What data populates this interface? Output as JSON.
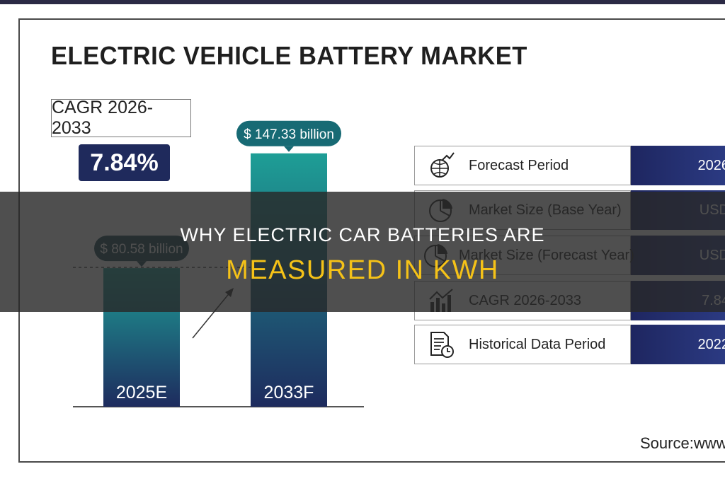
{
  "chart_data": {
    "type": "bar",
    "title": "ELECTRIC VEHICLE BATTERY MARKET",
    "categories": [
      "2025E",
      "2033F"
    ],
    "values": [
      80.58,
      147.33
    ],
    "value_labels": [
      "$ 80.58 billion",
      "$ 147.33 billion"
    ],
    "unit": "USD billion",
    "cagr": {
      "label": "CAGR 2026-2033",
      "value": "7.84%"
    },
    "ylim": [
      0,
      160
    ],
    "grid": false
  },
  "info_table": [
    {
      "label": "Forecast Period",
      "value": "2026",
      "icon": "globe-chart-icon"
    },
    {
      "label": "Market Size (Base Year)",
      "value": "USD",
      "icon": "pie-chart-icon"
    },
    {
      "label": "Market Size (Forecast Year)",
      "value": "USD",
      "icon": "pie-chart-icon"
    },
    {
      "label": "CAGR 2026-2033",
      "value": "7.84",
      "icon": "bar-chart-icon"
    },
    {
      "label": "Historical Data Period",
      "value": "2022",
      "icon": "document-clock-icon"
    }
  ],
  "source": "Source:www.",
  "banner": {
    "line1": "WHY ELECTRIC CAR BATTERIES ARE",
    "line2": "MEASURED IN KWH"
  },
  "colors": {
    "bar_top": "#1e9e96",
    "bar_bottom": "#1e2b5e",
    "label_pill": "#176a74",
    "navy": "#1f2a5c",
    "banner_accent": "#f5c218"
  }
}
